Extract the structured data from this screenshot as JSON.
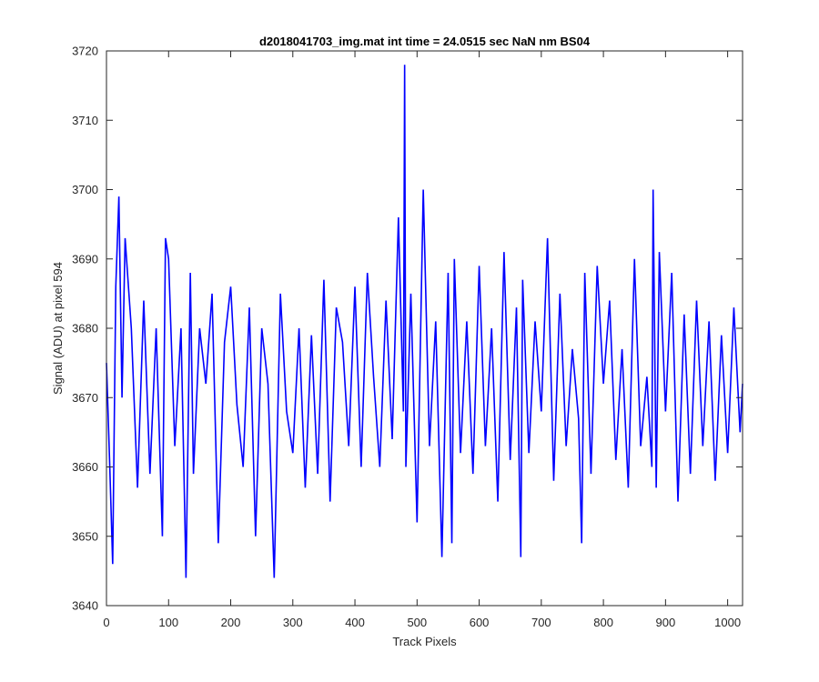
{
  "chart_data": {
    "type": "line",
    "title": "d2018041703_img.mat int time = 24.0515 sec  NaN nm BS04",
    "xlabel": "Track Pixels",
    "ylabel": "Signal (ADU) at pixel 594",
    "xlim": [
      0,
      1024
    ],
    "ylim": [
      3640,
      3720
    ],
    "xticks": [
      0,
      100,
      200,
      300,
      400,
      500,
      600,
      700,
      800,
      900,
      1000
    ],
    "yticks": [
      3640,
      3650,
      3660,
      3670,
      3680,
      3690,
      3700,
      3710,
      3720
    ],
    "grid": false,
    "series": [
      {
        "color": "#0000ff",
        "x": [
          0,
          5,
          10,
          15,
          20,
          25,
          30,
          40,
          50,
          60,
          70,
          80,
          90,
          95,
          100,
          110,
          120,
          125,
          128,
          135,
          140,
          150,
          160,
          170,
          180,
          190,
          200,
          210,
          220,
          230,
          240,
          250,
          260,
          270,
          280,
          290,
          300,
          310,
          320,
          330,
          340,
          350,
          360,
          370,
          380,
          390,
          400,
          410,
          420,
          430,
          440,
          450,
          460,
          470,
          478,
          480,
          482,
          490,
          500,
          510,
          520,
          530,
          540,
          550,
          556,
          560,
          570,
          580,
          590,
          600,
          610,
          620,
          630,
          640,
          650,
          660,
          667,
          670,
          680,
          690,
          700,
          710,
          720,
          730,
          740,
          750,
          760,
          765,
          770,
          780,
          790,
          800,
          810,
          820,
          830,
          840,
          850,
          860,
          870,
          878,
          880,
          885,
          890,
          900,
          910,
          920,
          930,
          940,
          950,
          960,
          970,
          980,
          990,
          1000,
          1010,
          1020,
          1024
        ],
        "values": [
          3675,
          3661,
          3646,
          3686,
          3699,
          3670,
          3693,
          3680,
          3657,
          3684,
          3659,
          3680,
          3650,
          3693,
          3690,
          3663,
          3680,
          3658,
          3644,
          3688,
          3659,
          3680,
          3672,
          3685,
          3649,
          3678,
          3686,
          3669,
          3660,
          3683,
          3650,
          3680,
          3672,
          3644,
          3685,
          3668,
          3662,
          3680,
          3657,
          3679,
          3659,
          3687,
          3655,
          3683,
          3678,
          3663,
          3686,
          3660,
          3688,
          3673,
          3660,
          3684,
          3664,
          3696,
          3668,
          3718,
          3660,
          3685,
          3652,
          3700,
          3663,
          3681,
          3647,
          3688,
          3649,
          3690,
          3662,
          3681,
          3659,
          3689,
          3663,
          3680,
          3655,
          3691,
          3661,
          3683,
          3647,
          3687,
          3662,
          3681,
          3668,
          3693,
          3658,
          3685,
          3663,
          3677,
          3667,
          3649,
          3688,
          3659,
          3689,
          3672,
          3684,
          3661,
          3677,
          3657,
          3690,
          3663,
          3673,
          3660,
          3700,
          3657,
          3691,
          3668,
          3688,
          3655,
          3682,
          3659,
          3684,
          3663,
          3681,
          3658,
          3679,
          3662,
          3683,
          3665,
          3672
        ]
      }
    ]
  }
}
